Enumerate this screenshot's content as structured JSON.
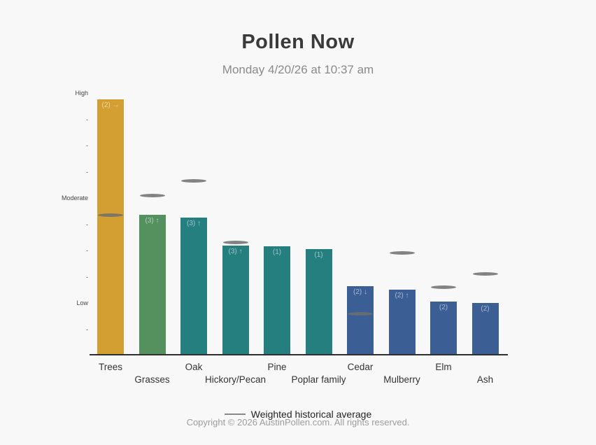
{
  "header": {
    "title": "Pollen Now",
    "subtitle": "Monday 4/20/26 at 10:37 am"
  },
  "chart_data": {
    "type": "bar",
    "title": "Pollen Now",
    "subtitle": "Monday 4/20/26 at 10:37 am",
    "ylabel": "",
    "xlabel": "",
    "ylim": [
      0,
      10
    ],
    "grid": false,
    "legend_position": "bottom",
    "y_ticks": [
      {
        "value": 10,
        "label": "High"
      },
      {
        "value": 9,
        "label": "-"
      },
      {
        "value": 8,
        "label": "-"
      },
      {
        "value": 7,
        "label": "-"
      },
      {
        "value": 6,
        "label": "Moderate"
      },
      {
        "value": 5,
        "label": "-"
      },
      {
        "value": 4,
        "label": "-"
      },
      {
        "value": 3,
        "label": "-"
      },
      {
        "value": 2,
        "label": "Low"
      },
      {
        "value": 1,
        "label": "-"
      }
    ],
    "categories": [
      "Trees",
      "Grasses",
      "Oak",
      "Hickory/Pecan",
      "Pine",
      "Poplar family",
      "Cedar",
      "Mulberry",
      "Elm",
      "Ash"
    ],
    "bars": [
      {
        "category": "Trees",
        "value": 9.75,
        "label": "(2) →",
        "color": "#d49f32",
        "historical_avg": 5.35
      },
      {
        "category": "Grasses",
        "value": 5.35,
        "label": "(3) ↑",
        "color": "#55915f",
        "historical_avg": 6.1
      },
      {
        "category": "Oak",
        "value": 5.25,
        "label": "(3) ↑",
        "color": "#267f7f",
        "historical_avg": 6.65
      },
      {
        "category": "Hickory/Pecan",
        "value": 4.2,
        "label": "(3) ↑",
        "color": "#267f7f",
        "historical_avg": 4.3
      },
      {
        "category": "Pine",
        "value": 4.15,
        "label": "(1)",
        "color": "#267f7f",
        "historical_avg": null
      },
      {
        "category": "Poplar family",
        "value": 4.05,
        "label": "(1)",
        "color": "#267f7f",
        "historical_avg": null
      },
      {
        "category": "Cedar",
        "value": 2.65,
        "label": "(2) ↓",
        "color": "#3b5f94",
        "historical_avg": 1.6
      },
      {
        "category": "Mulberry",
        "value": 2.5,
        "label": "(2) ↑",
        "color": "#3b5f94",
        "historical_avg": 3.9
      },
      {
        "category": "Elm",
        "value": 2.05,
        "label": "(2)",
        "color": "#3b5f94",
        "historical_avg": 2.6
      },
      {
        "category": "Ash",
        "value": 2.0,
        "label": "(2)",
        "color": "#3b5f94",
        "historical_avg": 3.1
      }
    ],
    "legend": "Weighted historical average"
  },
  "footer": {
    "copyright": "Copyright © 2026 AustinPollen.com.  All rights reserved."
  }
}
